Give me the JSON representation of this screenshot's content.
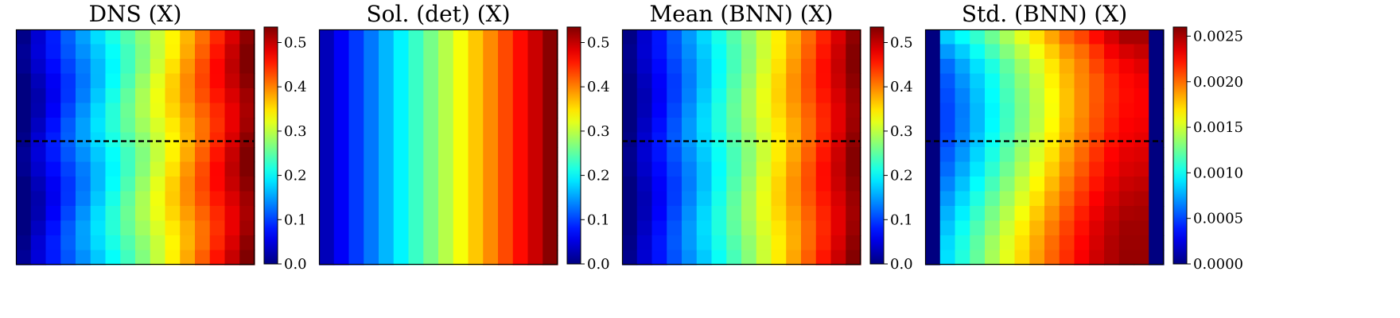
{
  "chart_data": [
    {
      "type": "heatmap",
      "title": "DNS (X)",
      "xlabel": "",
      "ylabel": "",
      "grid": false,
      "colormap": "jet",
      "colorbar": {
        "vmin": 0.0,
        "vmax": 0.535,
        "ticks": [
          0.0,
          0.1,
          0.2,
          0.3,
          0.4,
          0.5
        ],
        "tick_labels": [
          "0.0",
          "0.1",
          "0.2",
          "0.3",
          "0.4",
          "0.5"
        ]
      },
      "grid_size": [
        16,
        16
      ],
      "column_values": [
        0.0,
        0.035,
        0.07,
        0.105,
        0.14,
        0.175,
        0.21,
        0.245,
        0.28,
        0.315,
        0.35,
        0.385,
        0.42,
        0.455,
        0.49,
        0.525
      ],
      "row_modulation": 0.012,
      "dashed_line_row_fraction": 0.475
    },
    {
      "type": "heatmap",
      "title": "Sol. (det) (X)",
      "xlabel": "",
      "ylabel": "",
      "grid": false,
      "colormap": "jet",
      "colorbar": {
        "vmin": 0.0,
        "vmax": 0.535,
        "ticks": [
          0.0,
          0.1,
          0.2,
          0.3,
          0.4,
          0.5
        ],
        "tick_labels": [
          "0.0",
          "0.1",
          "0.2",
          "0.3",
          "0.4",
          "0.5"
        ]
      },
      "grid_size": [
        16,
        16
      ],
      "column_values": [
        0.03,
        0.063,
        0.096,
        0.13,
        0.163,
        0.196,
        0.23,
        0.263,
        0.296,
        0.33,
        0.363,
        0.396,
        0.43,
        0.463,
        0.496,
        0.53
      ],
      "row_modulation": 0.0
    },
    {
      "type": "heatmap",
      "title": "Mean (BNN) (X)",
      "xlabel": "",
      "ylabel": "",
      "grid": false,
      "colormap": "jet",
      "colorbar": {
        "vmin": 0.0,
        "vmax": 0.535,
        "ticks": [
          0.0,
          0.1,
          0.2,
          0.3,
          0.4,
          0.5
        ],
        "tick_labels": [
          "0.0",
          "0.1",
          "0.2",
          "0.3",
          "0.4",
          "0.5"
        ]
      },
      "grid_size": [
        16,
        16
      ],
      "column_values": [
        0.0,
        0.035,
        0.07,
        0.105,
        0.14,
        0.175,
        0.21,
        0.245,
        0.28,
        0.315,
        0.35,
        0.385,
        0.42,
        0.455,
        0.49,
        0.525
      ],
      "row_modulation": 0.008,
      "dashed_line_row_fraction": 0.475
    },
    {
      "type": "heatmap",
      "title": "Std. (BNN) (X)",
      "xlabel": "",
      "ylabel": "",
      "grid": false,
      "colormap": "jet",
      "colorbar": {
        "vmin": 0.0,
        "vmax": 0.0026,
        "ticks": [
          0.0,
          0.0005,
          0.001,
          0.0015,
          0.002,
          0.0025
        ],
        "tick_labels": [
          "0.0000",
          "0.0005",
          "0.0010",
          "0.0015",
          "0.0020",
          "0.0025"
        ]
      },
      "grid_size": [
        16,
        16
      ],
      "values": [
        [
          0.0,
          0.00085,
          0.00098,
          0.0011,
          0.00125,
          0.0014,
          0.00155,
          0.0017,
          0.00185,
          0.002,
          0.0021,
          0.00225,
          0.00238,
          0.0025,
          0.0025,
          0.0
        ],
        [
          0.0,
          0.00072,
          0.00085,
          0.001,
          0.00115,
          0.00131,
          0.00145,
          0.0016,
          0.00175,
          0.0019,
          0.002,
          0.00215,
          0.0023,
          0.00238,
          0.00242,
          0.0
        ],
        [
          0.0,
          0.0006,
          0.00075,
          0.0009,
          0.00105,
          0.00122,
          0.00137,
          0.00152,
          0.00168,
          0.00183,
          0.00195,
          0.0021,
          0.00222,
          0.0023,
          0.00235,
          0.0
        ],
        [
          0.0,
          0.00055,
          0.0007,
          0.00085,
          0.001,
          0.00118,
          0.00133,
          0.00148,
          0.00165,
          0.0018,
          0.00193,
          0.00205,
          0.00218,
          0.00226,
          0.0023,
          0.0
        ],
        [
          0.0,
          0.00052,
          0.00066,
          0.00082,
          0.00098,
          0.00115,
          0.0013,
          0.00146,
          0.00162,
          0.00178,
          0.00192,
          0.00205,
          0.00217,
          0.00225,
          0.00228,
          0.0
        ],
        [
          0.0,
          0.0005,
          0.00064,
          0.0008,
          0.00096,
          0.00113,
          0.00129,
          0.00145,
          0.00161,
          0.00178,
          0.00192,
          0.00206,
          0.00218,
          0.00226,
          0.00228,
          0.0
        ],
        [
          0.0,
          0.0005,
          0.00065,
          0.0008,
          0.00097,
          0.00114,
          0.0013,
          0.00146,
          0.00163,
          0.0018,
          0.00194,
          0.00208,
          0.0022,
          0.00228,
          0.0023,
          0.0
        ],
        [
          0.0,
          0.00052,
          0.00067,
          0.00083,
          0.001,
          0.00117,
          0.00133,
          0.0015,
          0.00166,
          0.00183,
          0.00197,
          0.00211,
          0.00223,
          0.0023,
          0.00233,
          0.0
        ],
        [
          0.0,
          0.00056,
          0.00071,
          0.00087,
          0.00104,
          0.00121,
          0.00137,
          0.00153,
          0.0017,
          0.00187,
          0.00201,
          0.00215,
          0.00227,
          0.00234,
          0.00236,
          0.0
        ],
        [
          0.0,
          0.0006,
          0.00076,
          0.00092,
          0.00109,
          0.00126,
          0.00142,
          0.00158,
          0.00175,
          0.00191,
          0.00205,
          0.00219,
          0.0023,
          0.00237,
          0.00239,
          0.0
        ],
        [
          0.0,
          0.00066,
          0.00082,
          0.00098,
          0.00115,
          0.00132,
          0.00148,
          0.00164,
          0.0018,
          0.00196,
          0.0021,
          0.00223,
          0.00234,
          0.00241,
          0.00243,
          0.0
        ],
        [
          0.0,
          0.00072,
          0.00088,
          0.00105,
          0.00122,
          0.00138,
          0.00154,
          0.0017,
          0.00186,
          0.00201,
          0.00215,
          0.00228,
          0.00238,
          0.00245,
          0.00247,
          0.0
        ],
        [
          0.0,
          0.00078,
          0.00094,
          0.00111,
          0.00128,
          0.00144,
          0.0016,
          0.00176,
          0.00191,
          0.00206,
          0.0022,
          0.00232,
          0.00242,
          0.00249,
          0.0025,
          0.0
        ],
        [
          0.0,
          0.00083,
          0.001,
          0.00117,
          0.00133,
          0.0015,
          0.00166,
          0.00181,
          0.00196,
          0.00211,
          0.00224,
          0.00236,
          0.00245,
          0.00252,
          0.00252,
          0.0
        ],
        [
          0.0,
          0.00088,
          0.00104,
          0.00121,
          0.00138,
          0.00154,
          0.0017,
          0.00185,
          0.002,
          0.00214,
          0.00227,
          0.00238,
          0.00247,
          0.00253,
          0.00253,
          0.0
        ],
        [
          0.0,
          0.0009,
          0.00106,
          0.00123,
          0.0014,
          0.00156,
          0.00172,
          0.00187,
          0.00202,
          0.00216,
          0.00229,
          0.0024,
          0.00248,
          0.00254,
          0.00254,
          0.0
        ]
      ],
      "dashed_line_row_fraction": 0.475
    }
  ]
}
